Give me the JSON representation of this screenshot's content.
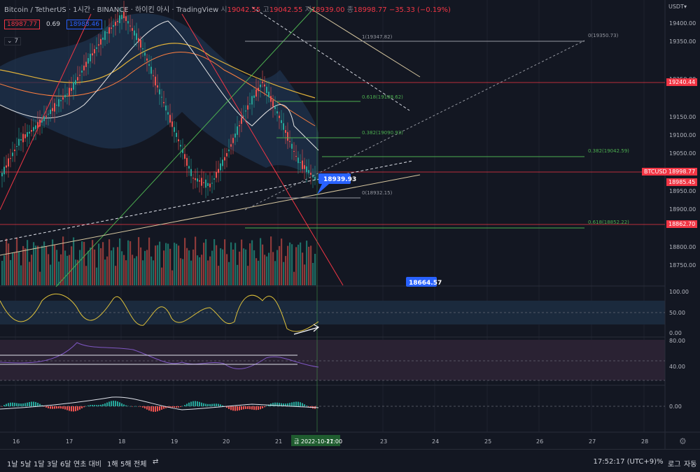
{
  "header": {
    "symbol": "Bitcoin / TetherUS · 1시간 · BINANCE · 하이킨 아시 · TradingView",
    "ohlc_open_label": "시",
    "ohlc_open": "19042.55",
    "ohlc_high_label": "고",
    "ohlc_high": "19042.55",
    "ohlc_low_label": "저",
    "ohlc_low": "18939.00",
    "ohlc_close_label": "종",
    "ohlc_close": "18998.77",
    "ohlc_change": "−35.33 (−0.19%)"
  },
  "chips": {
    "sell": "18987.77",
    "spread": "0.69",
    "buy": "18988.46"
  },
  "collapse_label": "7",
  "currency_label": "USDT▾",
  "colors": {
    "up": "#26a69a",
    "down": "#ef5350",
    "accent": "#2962ff",
    "bg": "#131722"
  },
  "price_scale": {
    "ticks": [
      "19400.00",
      "19350.00",
      "19250.00",
      "19150.00",
      "19100.00",
      "19050.00",
      "18950.00",
      "18900.00",
      "18800.00",
      "18750.00"
    ]
  },
  "price_tags": [
    {
      "label": "19240.44",
      "color": "#f23645"
    },
    {
      "label": "BTCUSDT",
      "color": "#f23645"
    },
    {
      "label": "18998.77",
      "color": "#f23645"
    },
    {
      "label": "18985.45",
      "color": "#f23645"
    },
    {
      "label": "18862.70",
      "color": "#f23645"
    }
  ],
  "fib_labels": [
    "1(19347.82)",
    "0(19350.73)",
    "0.618(19188.62)",
    "0.382(19090.93)",
    "0.382(19042.59)",
    "0(18932.15)",
    "0.618(18852.22)"
  ],
  "callouts": {
    "current": "18939.93",
    "low": "18664.57"
  },
  "osc1": {
    "ticks": [
      "100.00",
      "50.00",
      "0.00"
    ]
  },
  "osc2": {
    "ticks": [
      "80.00",
      "40.00"
    ]
  },
  "osc3": {
    "ticks": [
      "0.00"
    ]
  },
  "time_axis": {
    "labels": [
      "16",
      "17",
      "18",
      "19",
      "20",
      "21",
      "23",
      "24",
      "25",
      "26",
      "27",
      "28"
    ],
    "cursor": "금 2022-10-21",
    "cursor_time": "17:00"
  },
  "bottom": {
    "timeframes": [
      "1날",
      "5날",
      "1달",
      "3달",
      "6달",
      "연초 대비",
      "1해",
      "5해",
      "전체"
    ],
    "clock": "17:52:17 (UTC+9)",
    "pct": "%",
    "log": "로그",
    "auto": "자동"
  },
  "chart_data": {
    "type": "candlestick",
    "title": "Bitcoin / TetherUS · 1시간 · BINANCE · 하이킨 아시",
    "ylim": [
      18650,
      19420
    ],
    "x_range": [
      "2022-10-16",
      "2022-10-28"
    ],
    "series": [
      {
        "name": "BTCUSDT Heikin Ashi",
        "close": [
          18950,
          19040,
          19080,
          19130,
          19180,
          19260,
          19330,
          19380,
          19300,
          19180,
          19060,
          18940,
          18920,
          19010,
          19120,
          19200,
          19100,
          18990,
          18940
        ]
      }
    ],
    "reference_lines": [
      19240.44,
      18998.77,
      18985.45,
      18862.7
    ]
  }
}
